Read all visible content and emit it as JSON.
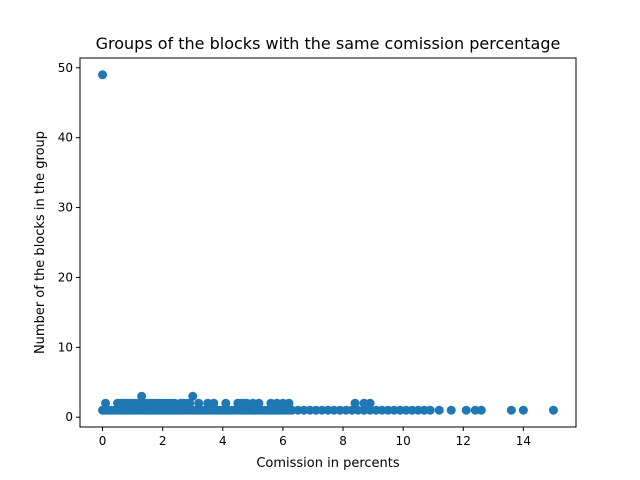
{
  "chart_data": {
    "type": "scatter",
    "title": "Groups of the blocks with the same comission percentage",
    "xlabel": "Comission in percents",
    "ylabel": "Number of the blocks in the group",
    "xlim": [
      -0.75,
      15.75
    ],
    "ylim": [
      -1.4,
      51.4
    ],
    "xticks": [
      0,
      2,
      4,
      6,
      8,
      10,
      12,
      14
    ],
    "yticks": [
      0,
      10,
      20,
      30,
      40,
      50
    ],
    "grid": false,
    "legend": "none",
    "marker_color": "#1f77b4",
    "series": [
      {
        "points": [
          [
            0.0,
            49
          ],
          [
            0.0,
            1
          ],
          [
            0.1,
            1
          ],
          [
            0.2,
            1
          ],
          [
            0.3,
            1
          ],
          [
            0.4,
            1
          ],
          [
            0.5,
            1
          ],
          [
            0.6,
            1
          ],
          [
            0.7,
            1
          ],
          [
            0.8,
            1
          ],
          [
            0.9,
            1
          ],
          [
            1.0,
            1
          ],
          [
            1.1,
            1
          ],
          [
            1.2,
            1
          ],
          [
            1.3,
            1
          ],
          [
            1.4,
            1
          ],
          [
            1.5,
            1
          ],
          [
            1.6,
            1
          ],
          [
            1.7,
            1
          ],
          [
            1.8,
            1
          ],
          [
            1.9,
            1
          ],
          [
            2.0,
            1
          ],
          [
            2.1,
            1
          ],
          [
            2.2,
            1
          ],
          [
            2.3,
            1
          ],
          [
            2.4,
            1
          ],
          [
            2.5,
            1
          ],
          [
            2.6,
            1
          ],
          [
            2.7,
            1
          ],
          [
            2.8,
            1
          ],
          [
            2.9,
            1
          ],
          [
            3.0,
            1
          ],
          [
            3.1,
            1
          ],
          [
            3.2,
            1
          ],
          [
            3.3,
            1
          ],
          [
            3.4,
            1
          ],
          [
            3.5,
            1
          ],
          [
            3.6,
            1
          ],
          [
            3.7,
            1
          ],
          [
            3.8,
            1
          ],
          [
            3.9,
            1
          ],
          [
            4.0,
            1
          ],
          [
            4.1,
            1
          ],
          [
            4.2,
            1
          ],
          [
            4.3,
            1
          ],
          [
            4.4,
            1
          ],
          [
            4.5,
            1
          ],
          [
            4.6,
            1
          ],
          [
            4.7,
            1
          ],
          [
            4.8,
            1
          ],
          [
            4.9,
            1
          ],
          [
            5.0,
            1
          ],
          [
            5.1,
            1
          ],
          [
            5.2,
            1
          ],
          [
            5.3,
            1
          ],
          [
            5.4,
            1
          ],
          [
            5.5,
            1
          ],
          [
            5.6,
            1
          ],
          [
            5.7,
            1
          ],
          [
            5.8,
            1
          ],
          [
            5.9,
            1
          ],
          [
            6.0,
            1
          ],
          [
            6.1,
            1
          ],
          [
            6.2,
            1
          ],
          [
            6.3,
            1
          ],
          [
            6.5,
            1
          ],
          [
            6.7,
            1
          ],
          [
            6.9,
            1
          ],
          [
            7.1,
            1
          ],
          [
            7.3,
            1
          ],
          [
            7.5,
            1
          ],
          [
            7.7,
            1
          ],
          [
            7.9,
            1
          ],
          [
            8.1,
            1
          ],
          [
            8.3,
            1
          ],
          [
            8.5,
            1
          ],
          [
            8.7,
            1
          ],
          [
            8.9,
            1
          ],
          [
            9.1,
            1
          ],
          [
            9.3,
            1
          ],
          [
            9.5,
            1
          ],
          [
            9.7,
            1
          ],
          [
            9.9,
            1
          ],
          [
            10.1,
            1
          ],
          [
            10.3,
            1
          ],
          [
            10.5,
            1
          ],
          [
            10.7,
            1
          ],
          [
            10.9,
            1
          ],
          [
            11.2,
            1
          ],
          [
            11.6,
            1
          ],
          [
            12.1,
            1
          ],
          [
            12.4,
            1
          ],
          [
            12.6,
            1
          ],
          [
            13.6,
            1
          ],
          [
            14.0,
            1
          ],
          [
            15.0,
            1
          ],
          [
            0.1,
            2
          ],
          [
            0.5,
            2
          ],
          [
            0.6,
            2
          ],
          [
            0.7,
            2
          ],
          [
            0.8,
            2
          ],
          [
            0.9,
            2
          ],
          [
            1.0,
            2
          ],
          [
            1.1,
            2
          ],
          [
            1.2,
            2
          ],
          [
            1.4,
            2
          ],
          [
            1.5,
            2
          ],
          [
            1.6,
            2
          ],
          [
            1.7,
            2
          ],
          [
            1.8,
            2
          ],
          [
            1.9,
            2
          ],
          [
            2.0,
            2
          ],
          [
            2.1,
            2
          ],
          [
            2.2,
            2
          ],
          [
            2.3,
            2
          ],
          [
            2.4,
            2
          ],
          [
            2.6,
            2
          ],
          [
            2.7,
            2
          ],
          [
            2.8,
            2
          ],
          [
            2.9,
            2
          ],
          [
            3.2,
            2
          ],
          [
            3.5,
            2
          ],
          [
            3.7,
            2
          ],
          [
            4.1,
            2
          ],
          [
            4.5,
            2
          ],
          [
            4.6,
            2
          ],
          [
            4.7,
            2
          ],
          [
            4.8,
            2
          ],
          [
            5.0,
            2
          ],
          [
            5.2,
            2
          ],
          [
            5.6,
            2
          ],
          [
            5.8,
            2
          ],
          [
            6.0,
            2
          ],
          [
            6.2,
            2
          ],
          [
            8.4,
            2
          ],
          [
            8.7,
            2
          ],
          [
            8.9,
            2
          ],
          [
            1.3,
            3
          ],
          [
            3.0,
            3
          ]
        ]
      }
    ]
  }
}
